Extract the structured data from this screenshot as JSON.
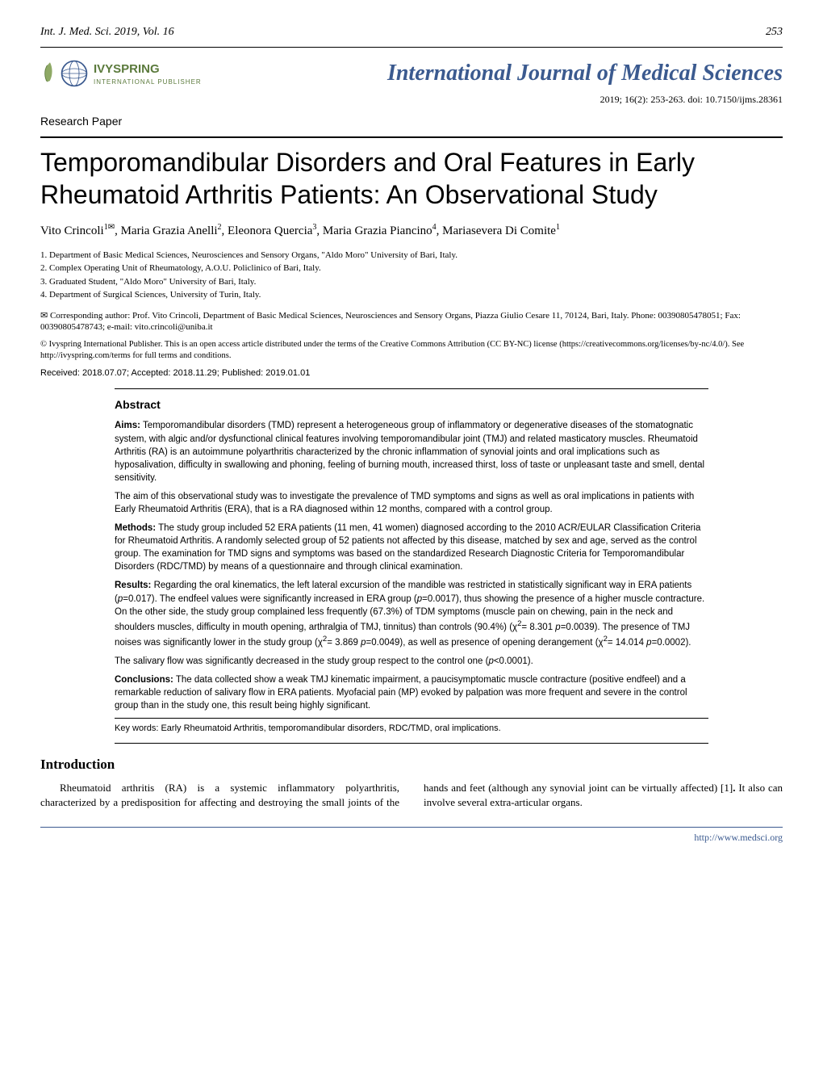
{
  "header": {
    "journal_ref": "Int. J. Med. Sci. 2019, Vol. 16",
    "page_number": "253"
  },
  "publisher": {
    "name": "IVYSPRING",
    "sub": "INTERNATIONAL PUBLISHER",
    "logo_leaf_color": "#7a9a4a",
    "logo_globe_color": "#3b5a8f"
  },
  "journal": {
    "title": "International Journal of Medical Sciences",
    "title_color": "#3b5a8f",
    "meta": "2019; 16(2): 253-263. doi: 10.7150/ijms.28361"
  },
  "paper_type": "Research Paper",
  "article": {
    "title": "Temporomandibular Disorders and Oral Features in Early Rheumatoid Arthritis Patients: An Observational Study",
    "authors_html": "Vito Crincoli<sup>1✉</sup>, Maria Grazia Anelli<sup>2</sup>, Eleonora Quercia<sup>3</sup>, Maria Grazia Piancino<sup>4</sup>, Mariasevera Di Comite<sup>1</sup>",
    "affiliations": [
      "1.   Department of Basic Medical Sciences, Neurosciences and Sensory Organs, \"Aldo Moro\" University of Bari, Italy.",
      "2.   Complex Operating Unit of Rheumatology, A.O.U. Policlinico of Bari, Italy.",
      "3.   Graduated Student, \"Aldo Moro\" University of Bari, Italy.",
      "4.   Department of Surgical Sciences, University of Turin, Italy."
    ],
    "corresponding": "✉ Corresponding author: Prof. Vito Crincoli, Department of Basic Medical Sciences, Neurosciences and Sensory Organs, Piazza Giulio Cesare 11, 70124, Bari, Italy. Phone: 00390805478051; Fax: 00390805478743; e-mail: vito.crincoli@uniba.it",
    "license": "© Ivyspring International Publisher. This is an open access article distributed under the terms of the Creative Commons Attribution (CC BY-NC) license (https://creativecommons.org/licenses/by-nc/4.0/). See http://ivyspring.com/terms for full terms and conditions.",
    "dates": "Received: 2018.07.07; Accepted: 2018.11.29; Published: 2019.01.01"
  },
  "abstract": {
    "heading": "Abstract",
    "paragraphs": [
      "<b>Aims:</b> Temporomandibular disorders (TMD) represent a heterogeneous group of inflammatory or degenerative diseases of the stomatognatic system, with algic and/or dysfunctional clinical features involving temporomandibular joint (TMJ) and related masticatory muscles. Rheumatoid Arthritis (RA) is an autoimmune polyarthritis characterized by the chronic inflammation of synovial joints and oral implications such as hyposalivation, difficulty in swallowing and phoning, feeling of burning mouth, increased thirst, loss of taste or unpleasant taste and smell, dental sensitivity.",
      "The aim of this observational study was to investigate the prevalence of TMD symptoms and signs as well as oral implications in patients with Early Rheumatoid Arthritis (ERA), that is a RA diagnosed within 12 months, compared with a control group.",
      "<b>Methods:</b> The study group included 52 ERA patients (11 men, 41 women) diagnosed according to the 2010 ACR/EULAR Classification Criteria for Rheumatoid Arthritis. A randomly selected group of 52 patients not affected by this disease, matched by sex and age, served as the control group. The examination for TMD signs and symptoms was based on the standardized Research Diagnostic Criteria for Temporomandibular Disorders (RDC/TMD) by means of a questionnaire and through clinical examination.",
      "<b>Results:</b> Regarding the oral kinematics, the left lateral excursion of the mandible was restricted in statistically significant way in ERA patients (<i>p</i>=0.017). The endfeel values were significantly increased in ERA group (<i>p</i>=0.0017), thus showing the presence of a higher muscle contracture. On the other side, the study group complained less frequently (67.3%) of TDM symptoms (muscle pain on chewing, pain in the neck and shoulders muscles, difficulty in mouth opening, arthralgia of TMJ, tinnitus) than controls (90.4%) (χ<sup>2</sup>= 8.301 <i>p</i>=0.0039). The presence of TMJ noises was significantly lower in the study group (χ<sup>2</sup>= 3.869 <i>p</i>=0.0049), as well as presence of opening derangement (χ<sup>2</sup>= 14.014 <i>p</i>=0.0002).",
      "The salivary flow was significantly decreased in the study group respect to the control one (<i>p</i><0.0001).",
      "<b>Conclusions:</b> The data collected show a weak TMJ kinematic impairment, a paucisymptomatic muscle contracture (positive endfeel) and a remarkable reduction of salivary flow in ERA patients. Myofacial pain (MP) evoked by palpation was more frequent and severe in the control group than in the study one, this result being highly significant."
    ],
    "keywords": "Key words: Early Rheumatoid Arthritis, temporomandibular disorders, RDC/TMD, oral implications."
  },
  "introduction": {
    "heading": "Introduction",
    "body": "Rheumatoid arthritis (RA) is a systemic inflammatory polyarthritis, characterized by a predisposition for affecting and destroying the small joints of the hands and feet (although any synovial joint can be virtually affected) [1]<b>.</b> It also can involve several extra-articular organs."
  },
  "footer": {
    "url": "http://www.medsci.org",
    "url_color": "#3b5a8f"
  },
  "colors": {
    "text": "#000000",
    "background": "#ffffff",
    "accent_blue": "#3b5a8f",
    "accent_green": "#5b7a3c"
  },
  "typography": {
    "body_font": "Georgia, serif",
    "sans_font": "Arial, sans-serif",
    "title_fontsize": 32,
    "journal_title_fontsize": 28,
    "abstract_fontsize": 11.5,
    "body_fontsize": 13
  }
}
